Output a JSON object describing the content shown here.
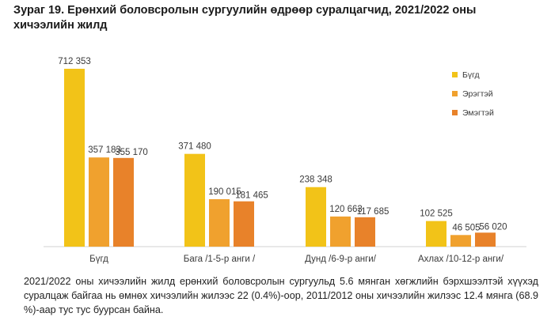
{
  "header": {
    "title": "Зураг 19.  Ерөнхий боловсролын сургуулийн өдрөөр суралцагчид, 2021/2022 оны хичээлийн жилд"
  },
  "chart_data": {
    "type": "bar",
    "title": "Зураг 19.  Ерөнхий боловсролын сургуулийн өдрөөр суралцагчид, 2021/2022 оны хичээлийн жилд",
    "categories": [
      "Бүгд",
      "Бага /1-5-р анги /",
      "Дунд /6-9-р анги/",
      "Ахлах /10-12-р анги/"
    ],
    "series": [
      {
        "name": "Бүгд",
        "color": "#F2C318",
        "values": [
          712353,
          371480,
          238348,
          102525
        ],
        "labels": [
          "712 353",
          "371 480",
          "238 348",
          "102 525"
        ]
      },
      {
        "name": "Эрэгтэй",
        "color": "#F0A12E",
        "values": [
          357183,
          190015,
          120663,
          46505
        ],
        "labels": [
          "357 183",
          "190 015",
          "120 663",
          "46 505"
        ]
      },
      {
        "name": "Эмэгтэй",
        "color": "#E8822A",
        "values": [
          355170,
          181465,
          117685,
          56020
        ],
        "labels": [
          "355 170",
          "181 465",
          "117 685",
          "56 020"
        ]
      }
    ],
    "ylim": [
      0,
      712353
    ],
    "xlabel": "",
    "ylabel": "",
    "grid": false,
    "legend_position": "top-right"
  },
  "footnote": {
    "text": "2021/2022 оны хичээлийн жилд ерөнхий боловсролын сургуульд 5.6 мянган хөгжлийн бэрхшээлтэй хүүхэд суралцаж байгаа нь өмнөх хичээлийн жилээс 22 (0.4%)-оор, 2011/2012 оны хичээлийн жилээс 12.4 мянга (68.9 %)-аар тус тус буурсан байна."
  }
}
